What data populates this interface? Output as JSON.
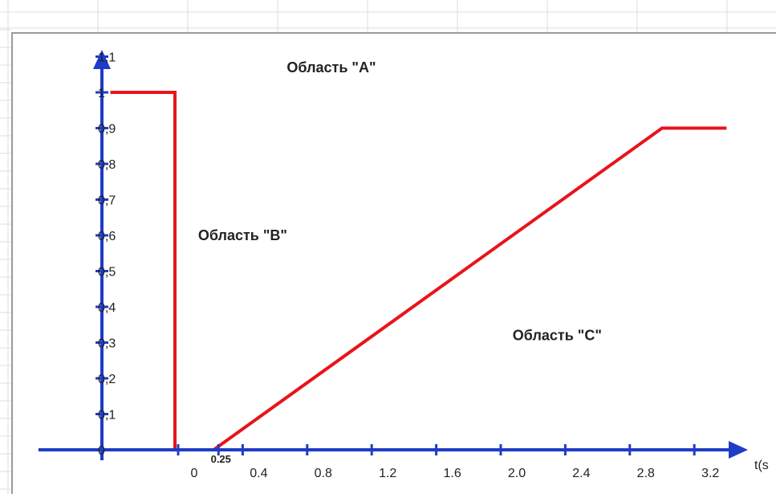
{
  "chart_data": {
    "type": "line",
    "title": "",
    "xlabel": "t(s",
    "ylabel": "",
    "x_tick_labels": [
      "0",
      "0.4",
      "0.8",
      "1.2",
      "1.6",
      "2.0",
      "2.4",
      "2.8",
      "3.2"
    ],
    "x_tick_values": [
      0,
      0.4,
      0.8,
      1.2,
      1.6,
      2.0,
      2.4,
      2.8,
      3.2
    ],
    "x_extra_label": {
      "text": "0.25",
      "value": 0.25
    },
    "y_tick_labels": [
      "0",
      "0,1",
      "0,2",
      "0,3",
      "0,4",
      "0,5",
      "0,6",
      "0,7",
      "0,8",
      "0,9",
      "1",
      "1,1"
    ],
    "y_tick_values": [
      0,
      0.1,
      0.2,
      0.3,
      0.4,
      0.5,
      0.6,
      0.7,
      0.8,
      0.9,
      1.0,
      1.1
    ],
    "xlim": [
      -0.6,
      3.45
    ],
    "ylim": [
      0,
      1.15
    ],
    "series": [
      {
        "color": "#e8141b",
        "x": [
          -0.42,
          -0.02,
          -0.02,
          0.22,
          3.0,
          3.4
        ],
        "y": [
          1.0,
          1.0,
          0.0,
          0.0,
          0.9,
          0.9
        ]
      }
    ],
    "annotations": [
      {
        "text": "Область \"A\"",
        "x": 0.95,
        "y": 1.07
      },
      {
        "text": "Область \"B\"",
        "x": 0.4,
        "y": 0.6
      },
      {
        "text": "Область \"C\"",
        "x": 2.35,
        "y": 0.32
      }
    ],
    "grid": false,
    "legend": "none",
    "axis_color": "#1e3cc8"
  }
}
